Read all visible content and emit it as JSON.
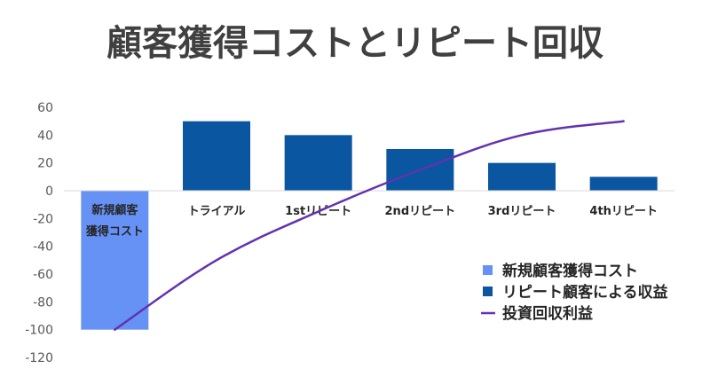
{
  "chart_data": {
    "type": "bar",
    "title": "顧客獲得コストとリピート回収",
    "categories": [
      "新規顧客獲得コスト",
      "トライアル",
      "1stリピート",
      "2ndリピート",
      "3rdリピート",
      "4thリピート"
    ],
    "series": [
      {
        "name": "新規顧客獲得コスト",
        "type": "bar",
        "color": "#6691f5",
        "values": [
          -100,
          null,
          null,
          null,
          null,
          null
        ]
      },
      {
        "name": "リピート顧客による収益",
        "type": "bar",
        "color": "#0a56a0",
        "values": [
          null,
          50,
          40,
          30,
          20,
          10
        ]
      },
      {
        "name": "投資回収利益",
        "type": "line",
        "color": "#6232b0",
        "values": [
          -100,
          -50,
          -15,
          15,
          40,
          50
        ]
      }
    ],
    "ylim": [
      -120,
      60
    ],
    "yticks": [
      60,
      40,
      20,
      0,
      -20,
      -40,
      -60,
      -80,
      -100,
      -120
    ],
    "grid": false,
    "legend_position": "bottom-right"
  }
}
